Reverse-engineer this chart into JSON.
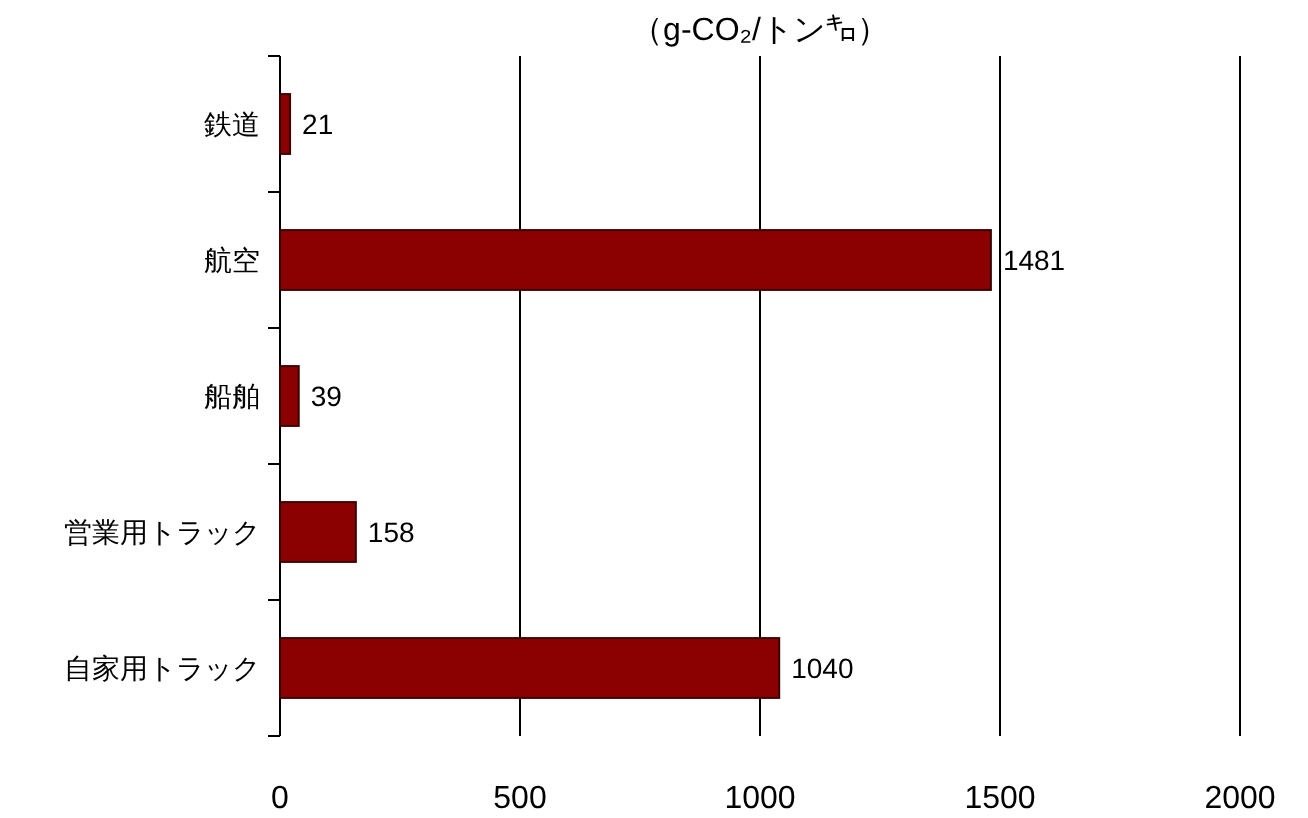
{
  "chart_data": {
    "type": "bar",
    "orientation": "horizontal",
    "title": "（g-CO₂/トン㌔）",
    "categories": [
      "鉄道",
      "航空",
      "船舶",
      "営業用トラック",
      "自家用トラック"
    ],
    "values": [
      21,
      1481,
      39,
      158,
      1040
    ],
    "color": "#8b0000",
    "xlim": [
      0,
      2000
    ],
    "xticks": [
      0,
      500,
      1000,
      1500,
      2000
    ],
    "grid": "x",
    "data_labels": true
  }
}
